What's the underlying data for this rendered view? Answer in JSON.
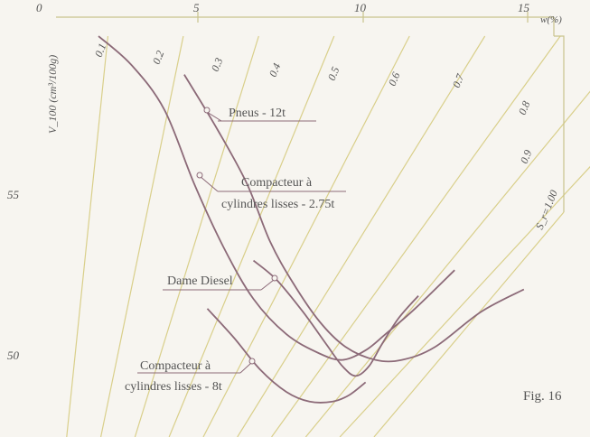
{
  "chart_data": {
    "type": "line",
    "title": "",
    "xlabel": "w(%)",
    "ylabel": "V_100 (cm³/100g)",
    "x_ticks": [
      "0",
      "5",
      "10",
      "15"
    ],
    "y_ticks": [
      "55",
      "50"
    ],
    "xlim": [
      0,
      16.5
    ],
    "ylim": [
      48.2,
      59.9
    ],
    "saturation_lines": {
      "labels": [
        "0.1",
        "0.2",
        "0.3",
        "0.4",
        "0.5",
        "0.6",
        "0.7",
        "0.8",
        "0.9",
        "S_r=1.00"
      ],
      "values": [
        0.1,
        0.2,
        0.3,
        0.4,
        0.5,
        0.6,
        0.7,
        0.8,
        0.9,
        1.0
      ]
    },
    "series": [
      {
        "name": "Pneus - 12t",
        "points": [
          [
            4.6,
            58.7
          ],
          [
            5.6,
            57.0
          ],
          [
            6.5,
            55.3
          ],
          [
            7.2,
            53.5
          ],
          [
            7.9,
            52.2
          ],
          [
            8.7,
            51.0
          ],
          [
            9.5,
            50.2
          ],
          [
            10.4,
            49.8
          ],
          [
            11.2,
            49.8
          ],
          [
            12.2,
            50.2
          ],
          [
            13.6,
            51.3
          ],
          [
            14.9,
            52.0
          ]
        ]
      },
      {
        "name": "Compacteur à cylindres lisses - 2.75t",
        "points": [
          [
            2.0,
            59.9
          ],
          [
            3.0,
            59.0
          ],
          [
            4.0,
            57.6
          ],
          [
            4.9,
            55.3
          ],
          [
            5.8,
            53.3
          ],
          [
            6.7,
            51.7
          ],
          [
            7.7,
            50.6
          ],
          [
            8.7,
            50.0
          ],
          [
            9.4,
            49.8
          ],
          [
            10.1,
            50.1
          ],
          [
            10.7,
            50.6
          ],
          [
            11.6,
            51.4
          ],
          [
            12.8,
            52.6
          ]
        ]
      },
      {
        "name": "Dame Diesel",
        "points": [
          [
            6.7,
            52.9
          ],
          [
            7.4,
            52.3
          ],
          [
            8.2,
            51.3
          ],
          [
            8.9,
            50.3
          ],
          [
            9.4,
            49.6
          ],
          [
            9.8,
            49.3
          ],
          [
            10.2,
            49.6
          ],
          [
            10.6,
            50.3
          ],
          [
            11.1,
            51.1
          ],
          [
            11.7,
            51.8
          ]
        ]
      },
      {
        "name": "Compacteur à cylindres lisses - 8t",
        "points": [
          [
            5.3,
            51.4
          ],
          [
            6.1,
            50.5
          ],
          [
            6.9,
            49.5
          ],
          [
            7.7,
            48.8
          ],
          [
            8.4,
            48.5
          ],
          [
            9.1,
            48.5
          ],
          [
            9.6,
            48.7
          ],
          [
            10.1,
            49.1
          ]
        ]
      }
    ],
    "annotations": {
      "pneus": "Pneus - 12t",
      "compacteur_275_line1": "Compacteur à",
      "compacteur_275_line2": "cylindres lisses - 2.75t",
      "dame": "Dame Diesel",
      "compacteur_8_line1": "Compacteur à",
      "compacteur_8_line2": "cylindres lisses - 8t",
      "fig": "Fig. 16"
    },
    "grid": false,
    "legend": "none"
  }
}
